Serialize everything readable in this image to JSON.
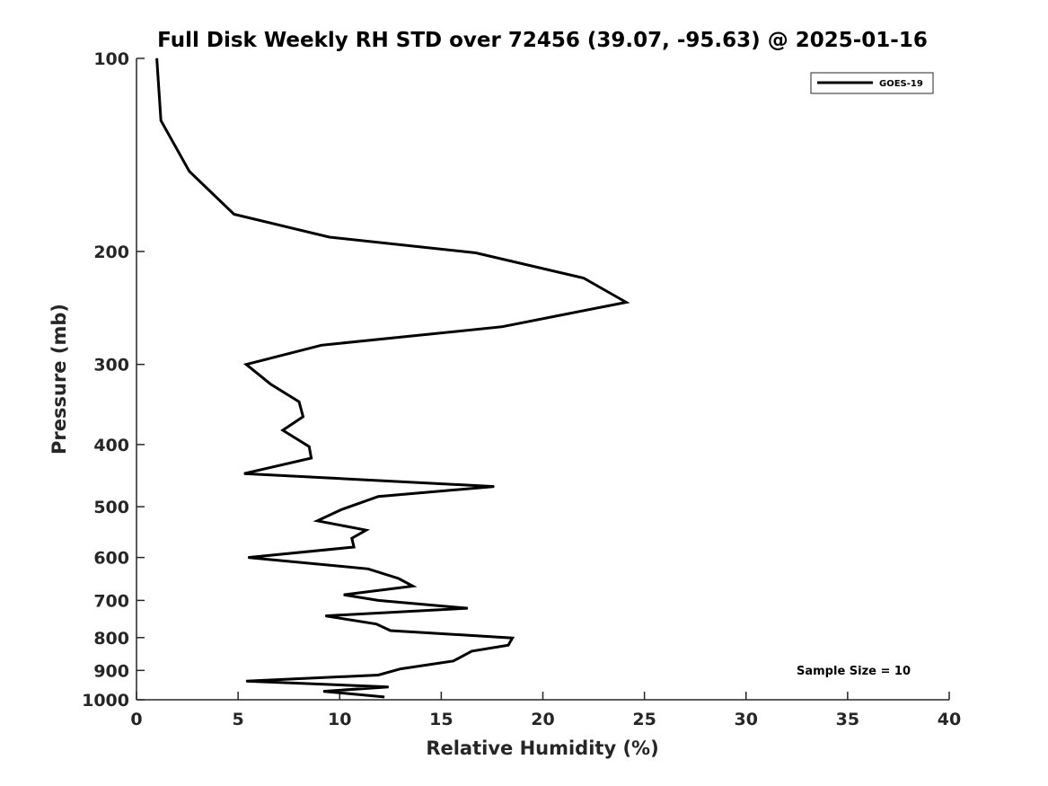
{
  "chart_data": {
    "type": "line",
    "title": "Full Disk Weekly RH STD over 72456 (39.07, -95.63) @ 2025-01-16",
    "xlabel": "Relative Humidity (%)",
    "ylabel": "Pressure (mb)",
    "xlim": [
      0,
      40
    ],
    "ylim": [
      100,
      1000
    ],
    "y_scale": "log",
    "y_reversed": true,
    "x_ticks": [
      "0",
      "5",
      "10",
      "15",
      "20",
      "25",
      "30",
      "35",
      "40"
    ],
    "y_ticks": [
      "100",
      "200",
      "300",
      "400",
      "500",
      "600",
      "700",
      "800",
      "900",
      "1000"
    ],
    "grid": false,
    "legend_position": "top-right",
    "annotation": "Sample Size = 10",
    "series": [
      {
        "name": "GOES-19",
        "color": "#000000",
        "points": [
          [
            1.0,
            100
          ],
          [
            1.2,
            125
          ],
          [
            2.6,
            150
          ],
          [
            4.8,
            175
          ],
          [
            9.5,
            190
          ],
          [
            16.7,
            201
          ],
          [
            22.0,
            220
          ],
          [
            24.1,
            240
          ],
          [
            18.0,
            262
          ],
          [
            9.1,
            280
          ],
          [
            5.4,
            300
          ],
          [
            6.6,
            322
          ],
          [
            8.0,
            343
          ],
          [
            8.2,
            362
          ],
          [
            7.2,
            380
          ],
          [
            8.5,
            403
          ],
          [
            8.6,
            420
          ],
          [
            5.3,
            444
          ],
          [
            17.6,
            465
          ],
          [
            11.9,
            482
          ],
          [
            10.1,
            505
          ],
          [
            8.9,
            526
          ],
          [
            11.3,
            544
          ],
          [
            10.6,
            560
          ],
          [
            10.7,
            578
          ],
          [
            5.5,
            600
          ],
          [
            11.4,
            625
          ],
          [
            12.9,
            647
          ],
          [
            13.6,
            665
          ],
          [
            10.2,
            686
          ],
          [
            11.9,
            700
          ],
          [
            16.3,
            720
          ],
          [
            9.3,
            740
          ],
          [
            11.8,
            762
          ],
          [
            12.5,
            780
          ],
          [
            18.5,
            801
          ],
          [
            18.3,
            822
          ],
          [
            16.5,
            840
          ],
          [
            15.6,
            870
          ],
          [
            13.0,
            895
          ],
          [
            11.9,
            915
          ],
          [
            5.4,
            935
          ],
          [
            12.4,
            955
          ],
          [
            9.2,
            970
          ],
          [
            12.2,
            990
          ]
        ]
      }
    ]
  }
}
